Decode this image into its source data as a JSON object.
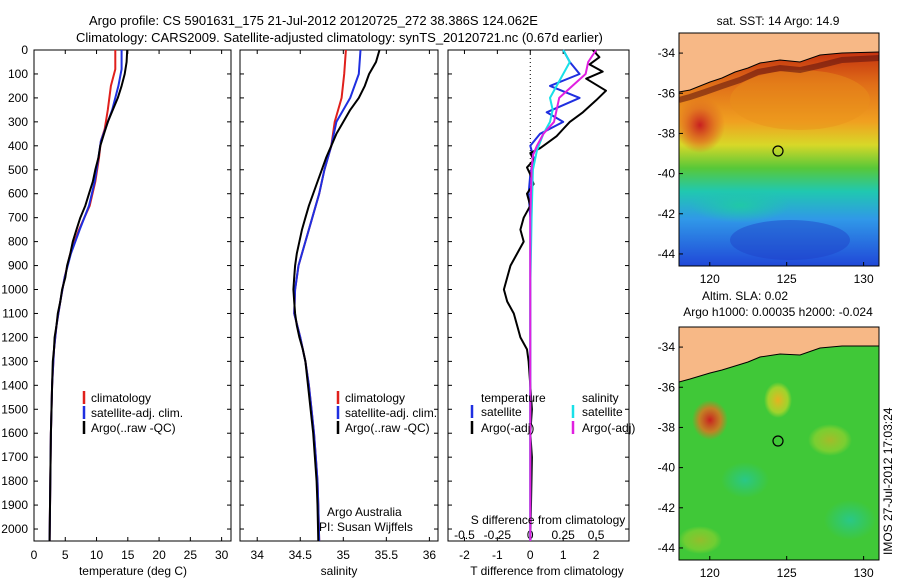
{
  "header": {
    "line1": "Argo profile: CS 5901631_175 21-Jul-2012 20120725_272 38.386S 124.062E",
    "line2": "Climatology: CARS2009. Satellite-adjusted climatology: synTS_20120721.nc (0.67d earlier)"
  },
  "side_stamp": "IMOS 27-Jul-2012 17:03:24",
  "colors": {
    "climatology": "#e0201c",
    "satellite": "#1f2fe0",
    "argo": "#000000",
    "sal_satellite": "#19e0e8",
    "sal_argo": "#e020e0",
    "land": "#f7b886"
  },
  "chart_data": [
    {
      "type": "line",
      "id": "temperature",
      "xlabel": "temperature (deg C)",
      "ylabel": "",
      "xlim": [
        0,
        31.5
      ],
      "ylim": [
        2050,
        0
      ],
      "xticks": [
        0,
        5,
        10,
        15,
        20,
        25,
        30
      ],
      "yticks": [
        0,
        100,
        200,
        300,
        400,
        500,
        600,
        700,
        800,
        900,
        1000,
        1100,
        1200,
        1300,
        1400,
        1500,
        1600,
        1700,
        1800,
        1900,
        2000
      ],
      "legend": [
        "climatology",
        "satellite-adj. clim.",
        "Argo(..raw -QC)"
      ],
      "series": [
        {
          "name": "climatology",
          "points": [
            [
              13.0,
              0
            ],
            [
              13.0,
              80
            ],
            [
              12.3,
              150
            ],
            [
              11.8,
              250
            ],
            [
              11.3,
              330
            ],
            [
              10.7,
              380
            ],
            [
              10.4,
              450
            ],
            [
              9.8,
              550
            ],
            [
              8.9,
              650
            ],
            [
              7.2,
              750
            ],
            [
              5.8,
              850
            ],
            [
              4.9,
              950
            ],
            [
              4.2,
              1050
            ],
            [
              3.6,
              1150
            ],
            [
              3.2,
              1250
            ],
            [
              2.9,
              1400
            ],
            [
              2.7,
              1600
            ],
            [
              2.6,
              1800
            ],
            [
              2.5,
              2050
            ]
          ]
        },
        {
          "name": "satellite-adj. clim.",
          "points": [
            [
              14.0,
              0
            ],
            [
              14.0,
              80
            ],
            [
              13.5,
              150
            ],
            [
              12.5,
              250
            ],
            [
              11.4,
              330
            ],
            [
              10.7,
              380
            ],
            [
              10.3,
              450
            ],
            [
              9.7,
              550
            ],
            [
              8.8,
              650
            ],
            [
              7.3,
              750
            ],
            [
              5.9,
              850
            ],
            [
              4.9,
              950
            ],
            [
              4.2,
              1050
            ],
            [
              3.6,
              1150
            ],
            [
              3.2,
              1250
            ],
            [
              2.9,
              1400
            ],
            [
              2.7,
              1600
            ],
            [
              2.6,
              1800
            ],
            [
              2.5,
              2050
            ]
          ]
        },
        {
          "name": "Argo(..raw -QC)",
          "points": [
            [
              14.9,
              0
            ],
            [
              14.8,
              50
            ],
            [
              14.5,
              100
            ],
            [
              14.0,
              150
            ],
            [
              13.4,
              200
            ],
            [
              12.6,
              250
            ],
            [
              11.8,
              300
            ],
            [
              11.2,
              350
            ],
            [
              10.6,
              400
            ],
            [
              10.3,
              450
            ],
            [
              9.8,
              500
            ],
            [
              9.4,
              550
            ],
            [
              8.8,
              600
            ],
            [
              8.2,
              650
            ],
            [
              7.4,
              700
            ],
            [
              6.8,
              750
            ],
            [
              6.2,
              800
            ],
            [
              5.8,
              850
            ],
            [
              5.3,
              900
            ],
            [
              5.0,
              950
            ],
            [
              4.5,
              1000
            ],
            [
              4.2,
              1050
            ],
            [
              3.8,
              1100
            ],
            [
              3.6,
              1150
            ],
            [
              3.3,
              1200
            ],
            [
              3.2,
              1250
            ],
            [
              3.0,
              1300
            ],
            [
              2.9,
              1400
            ],
            [
              2.8,
              1500
            ],
            [
              2.7,
              1600
            ],
            [
              2.6,
              1800
            ],
            [
              2.5,
              2050
            ]
          ]
        }
      ]
    },
    {
      "type": "line",
      "id": "salinity",
      "xlabel": "salinity",
      "ylabel": "",
      "xlim": [
        33.8,
        36.1
      ],
      "ylim": [
        2050,
        0
      ],
      "xticks": [
        34,
        34.5,
        35,
        35.5,
        36
      ],
      "legend": [
        "climatology",
        "satellite-adj. clim.",
        "Argo(..raw -QC)"
      ],
      "annotation": [
        "Argo Australia",
        "PI: Susan Wijffels"
      ],
      "series": [
        {
          "name": "climatology",
          "points": [
            [
              35.03,
              0
            ],
            [
              35.01,
              100
            ],
            [
              34.98,
              200
            ],
            [
              34.9,
              300
            ],
            [
              34.86,
              400
            ],
            [
              34.78,
              500
            ],
            [
              34.72,
              600
            ],
            [
              34.64,
              700
            ],
            [
              34.56,
              800
            ],
            [
              34.48,
              900
            ],
            [
              34.44,
              1000
            ],
            [
              34.43,
              1100
            ],
            [
              34.5,
              1200
            ],
            [
              34.56,
              1300
            ],
            [
              34.6,
              1400
            ],
            [
              34.63,
              1500
            ],
            [
              34.66,
              1600
            ],
            [
              34.68,
              1700
            ],
            [
              34.7,
              1800
            ],
            [
              34.71,
              1900
            ],
            [
              34.72,
              2050
            ]
          ]
        },
        {
          "name": "satellite-adj. clim.",
          "points": [
            [
              35.2,
              0
            ],
            [
              35.18,
              100
            ],
            [
              35.08,
              200
            ],
            [
              34.92,
              300
            ],
            [
              34.86,
              400
            ],
            [
              34.78,
              500
            ],
            [
              34.72,
              600
            ],
            [
              34.64,
              700
            ],
            [
              34.56,
              800
            ],
            [
              34.48,
              900
            ],
            [
              34.44,
              1000
            ],
            [
              34.43,
              1100
            ],
            [
              34.5,
              1200
            ],
            [
              34.56,
              1300
            ],
            [
              34.6,
              1400
            ],
            [
              34.63,
              1500
            ],
            [
              34.66,
              1600
            ],
            [
              34.68,
              1700
            ],
            [
              34.7,
              1800
            ],
            [
              34.71,
              1900
            ],
            [
              34.72,
              2050
            ]
          ]
        },
        {
          "name": "Argo(..raw -QC)",
          "points": [
            [
              35.42,
              0
            ],
            [
              35.38,
              50
            ],
            [
              35.3,
              100
            ],
            [
              35.25,
              150
            ],
            [
              35.18,
              200
            ],
            [
              35.08,
              250
            ],
            [
              35.0,
              300
            ],
            [
              34.92,
              350
            ],
            [
              34.86,
              400
            ],
            [
              34.8,
              450
            ],
            [
              34.75,
              500
            ],
            [
              34.7,
              550
            ],
            [
              34.65,
              600
            ],
            [
              34.6,
              650
            ],
            [
              34.56,
              700
            ],
            [
              34.52,
              750
            ],
            [
              34.49,
              800
            ],
            [
              34.46,
              850
            ],
            [
              34.44,
              900
            ],
            [
              34.43,
              950
            ],
            [
              34.42,
              1000
            ],
            [
              34.43,
              1050
            ],
            [
              34.44,
              1100
            ],
            [
              34.46,
              1150
            ],
            [
              34.49,
              1200
            ],
            [
              34.53,
              1250
            ],
            [
              34.56,
              1300
            ],
            [
              34.59,
              1400
            ],
            [
              34.62,
              1500
            ],
            [
              34.65,
              1600
            ],
            [
              34.67,
              1700
            ],
            [
              34.69,
              1800
            ],
            [
              34.7,
              1900
            ],
            [
              34.71,
              2050
            ]
          ]
        }
      ]
    },
    {
      "type": "line",
      "id": "difference",
      "xlabel": "T difference from climatology",
      "xlabel_top": "S difference from climatology",
      "xlim": [
        -2.5,
        3.0
      ],
      "ylim": [
        2050,
        0
      ],
      "xticks": [
        -2,
        -1,
        0,
        1,
        2
      ],
      "sticks": [
        -0.5,
        -0.25,
        0,
        0.25,
        0.5
      ],
      "sticks_labels": [
        "-0.5",
        "-0.25",
        "0",
        "0.25",
        "0.5"
      ],
      "legend_temperature_title": "temperature",
      "legend_salinity_title": "salinity",
      "legend": [
        "satellite",
        "Argo(-adj)",
        "satellite",
        "Argo(-adj)"
      ],
      "series": [
        {
          "name": "T satellite",
          "points": [
            [
              1.0,
              0
            ],
            [
              1.2,
              50
            ],
            [
              1.5,
              100
            ],
            [
              0.6,
              150
            ],
            [
              1.5,
              200
            ],
            [
              0.5,
              260
            ],
            [
              1.0,
              300
            ],
            [
              0.3,
              350
            ],
            [
              0.0,
              400
            ],
            [
              0.1,
              450
            ],
            [
              0.0,
              520
            ],
            [
              -0.05,
              600
            ],
            [
              0.0,
              700
            ],
            [
              0.0,
              900
            ],
            [
              0.0,
              2050
            ]
          ]
        },
        {
          "name": "T Argo(-adj)",
          "points": [
            [
              1.9,
              0
            ],
            [
              2.1,
              30
            ],
            [
              1.8,
              60
            ],
            [
              2.2,
              90
            ],
            [
              1.7,
              120
            ],
            [
              2.3,
              170
            ],
            [
              2.0,
              210
            ],
            [
              1.6,
              260
            ],
            [
              1.2,
              300
            ],
            [
              1.0,
              330
            ],
            [
              0.8,
              360
            ],
            [
              0.5,
              390
            ],
            [
              0.3,
              410
            ],
            [
              0.0,
              430
            ],
            [
              0.1,
              460
            ],
            [
              -0.1,
              490
            ],
            [
              0.0,
              520
            ],
            [
              0.1,
              560
            ],
            [
              -0.1,
              600
            ],
            [
              0.0,
              650
            ],
            [
              -0.2,
              700
            ],
            [
              -0.3,
              750
            ],
            [
              -0.2,
              800
            ],
            [
              -0.4,
              850
            ],
            [
              -0.6,
              900
            ],
            [
              -0.7,
              950
            ],
            [
              -0.8,
              1000
            ],
            [
              -0.7,
              1050
            ],
            [
              -0.5,
              1100
            ],
            [
              -0.4,
              1150
            ],
            [
              -0.3,
              1200
            ],
            [
              -0.1,
              1250
            ],
            [
              -0.05,
              1300
            ],
            [
              0.0,
              1400
            ],
            [
              0.05,
              1500
            ],
            [
              0.0,
              1600
            ],
            [
              0.05,
              1700
            ],
            [
              0.0,
              2050
            ]
          ]
        },
        {
          "name": "S satellite",
          "points": [
            [
              0.0,
              2050
            ],
            [
              0.0,
              1200
            ],
            [
              0.0,
              1000
            ],
            [
              0.01,
              700
            ],
            [
              0.02,
              500
            ],
            [
              0.05,
              420
            ],
            [
              0.1,
              350
            ],
            [
              0.15,
              300
            ],
            [
              0.17,
              250
            ],
            [
              0.15,
              200
            ],
            [
              0.25,
              100
            ],
            [
              0.3,
              50
            ],
            [
              0.25,
              0
            ]
          ]
        },
        {
          "name": "S Argo(-adj)",
          "points": [
            [
              0.0,
              2050
            ],
            [
              0.0,
              1000
            ],
            [
              0.0,
              700
            ],
            [
              0.01,
              500
            ],
            [
              0.02,
              440
            ],
            [
              0.05,
              400
            ],
            [
              0.1,
              350
            ],
            [
              0.18,
              300
            ],
            [
              0.22,
              200
            ],
            [
              0.32,
              150
            ],
            [
              0.42,
              100
            ],
            [
              0.44,
              50
            ],
            [
              0.5,
              0
            ]
          ]
        }
      ]
    }
  ],
  "maps": {
    "sst": {
      "title": "sat. SST: 14 Argo: 14.9",
      "xticks": [
        120,
        125,
        130
      ],
      "yticks": [
        -34,
        -36,
        -38,
        -40,
        -42,
        -44
      ]
    },
    "sla": {
      "title_line1": "Altim. SLA: 0.02",
      "title_line2": "Argo h1000: 0.00035 h2000: -0.024",
      "xticks": [
        120,
        125,
        130
      ],
      "yticks": [
        -34,
        -36,
        -38,
        -40,
        -42,
        -44
      ]
    }
  }
}
